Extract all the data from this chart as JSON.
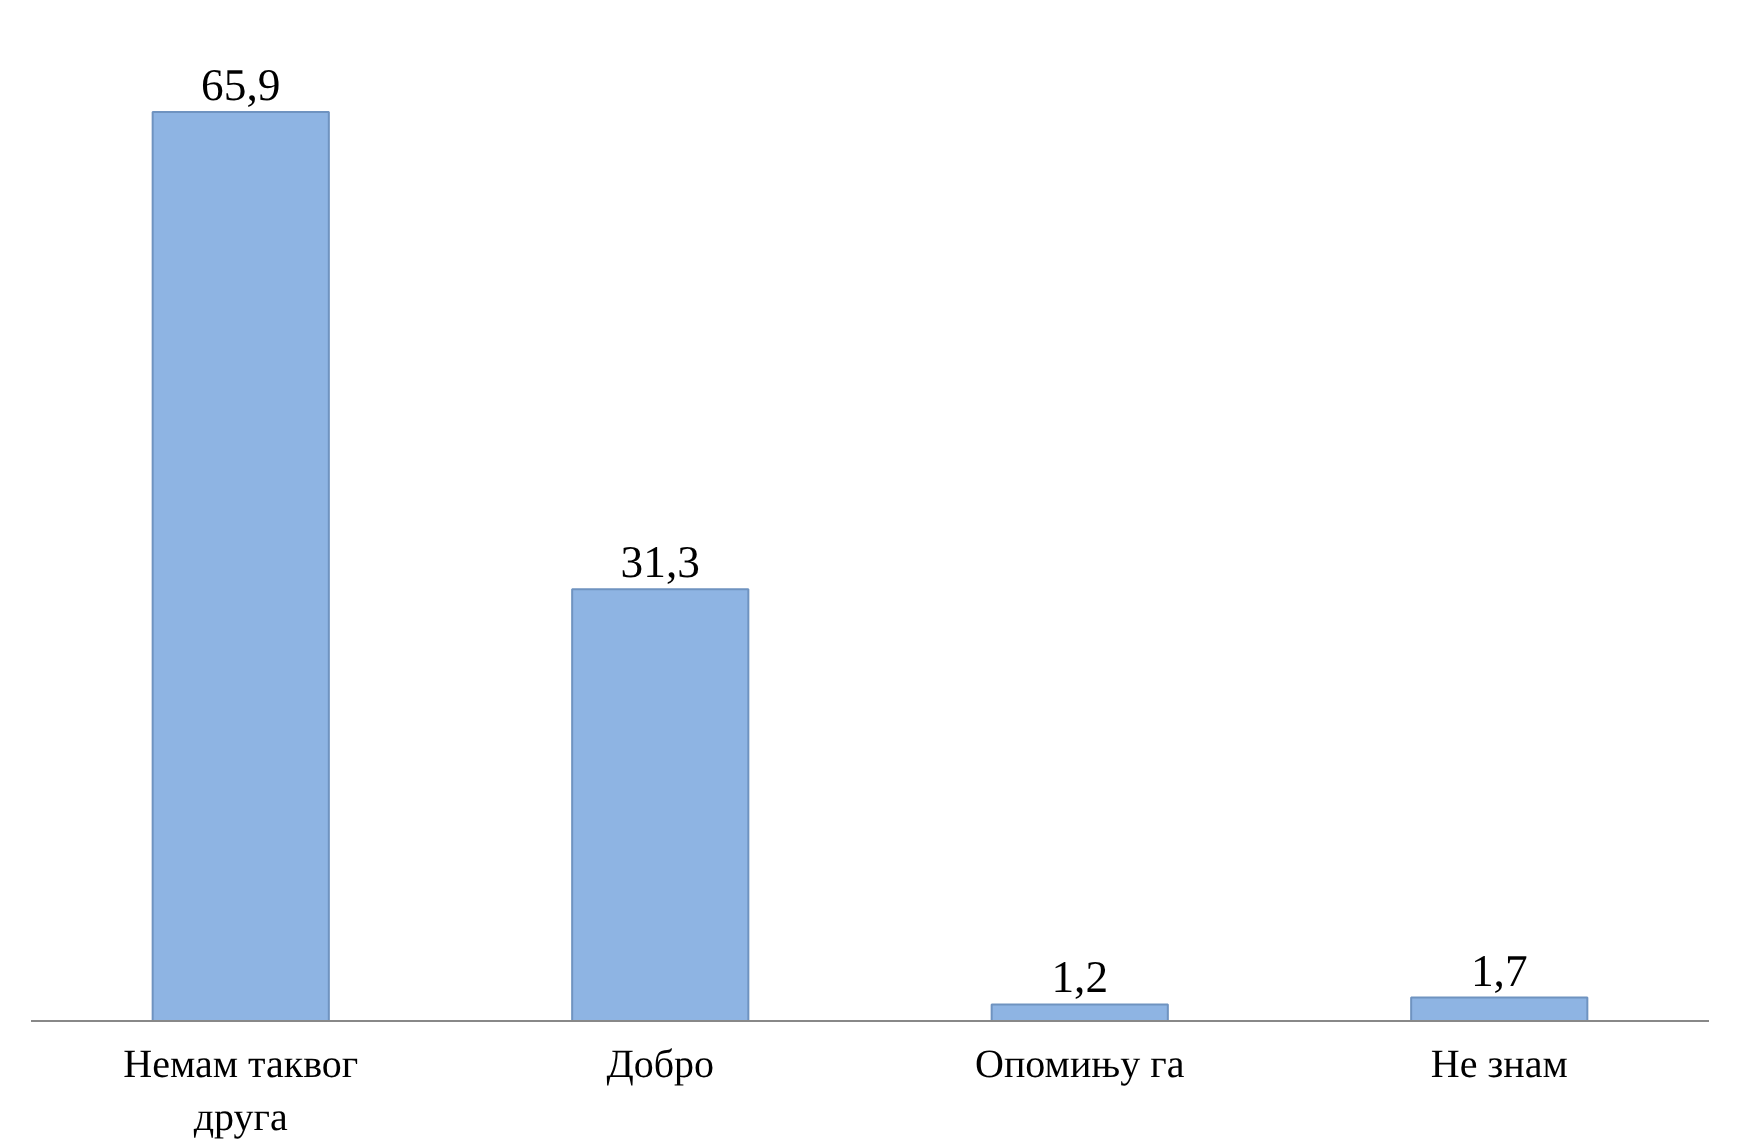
{
  "chart_data": {
    "type": "bar",
    "categories": [
      "Немам таквог друга",
      "Добро",
      "Опомињу га",
      "Не знам"
    ],
    "values": [
      65.9,
      31.3,
      1.2,
      1.7
    ],
    "value_labels": [
      "65,9",
      "31,3",
      "1,2",
      "1,7"
    ],
    "color": "#8eb4e3"
  }
}
